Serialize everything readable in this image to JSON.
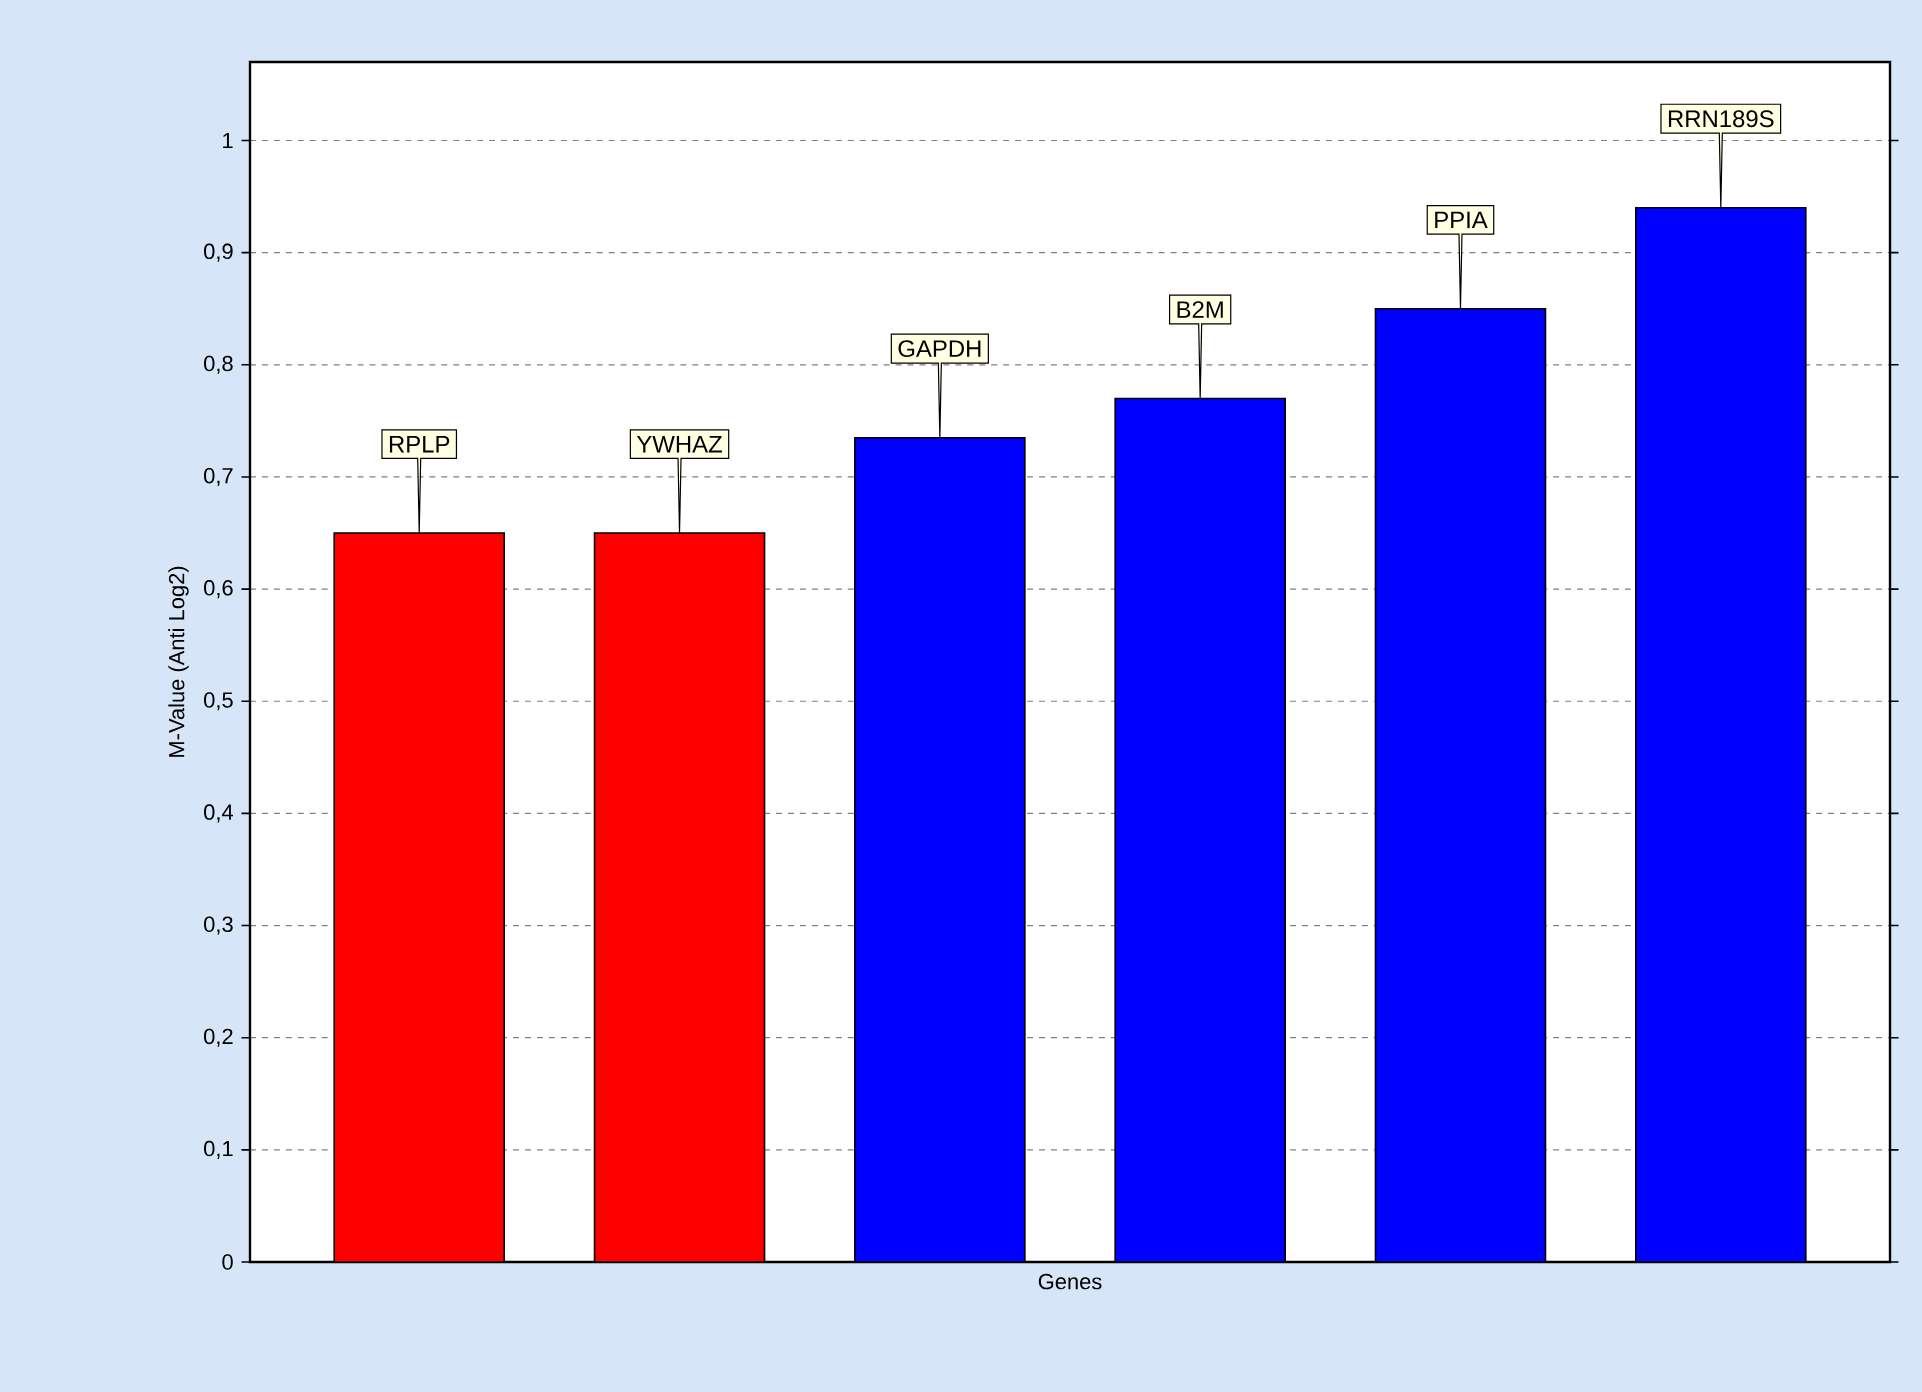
{
  "chart_data": {
    "type": "bar",
    "xlabel": "Genes",
    "ylabel": "M-Value (Anti Log2)",
    "categories": [
      "RPLP",
      "YWHAZ",
      "GAPDH",
      "B2M",
      "PPIA",
      "RRN189S"
    ],
    "values": [
      0.65,
      0.65,
      0.735,
      0.77,
      0.85,
      0.94
    ],
    "colors": [
      "#ff0000",
      "#ff0000",
      "#0000ff",
      "#0000ff",
      "#0000ff",
      "#0000ff"
    ],
    "ylim": [
      0,
      1.07
    ],
    "yticks": [
      0,
      {
        "value": 0.1,
        "label": "0,1"
      },
      {
        "value": 0.2,
        "label": "0,2"
      },
      {
        "value": 0.3,
        "label": "0,3"
      },
      {
        "value": 0.4,
        "label": "0,4"
      },
      {
        "value": 0.5,
        "label": "0,5"
      },
      {
        "value": 0.6,
        "label": "0,6"
      },
      {
        "value": 0.7,
        "label": "0,7"
      },
      {
        "value": 0.8,
        "label": "0,8"
      },
      {
        "value": 0.9,
        "label": "0,9"
      },
      1
    ],
    "grid": "y"
  }
}
